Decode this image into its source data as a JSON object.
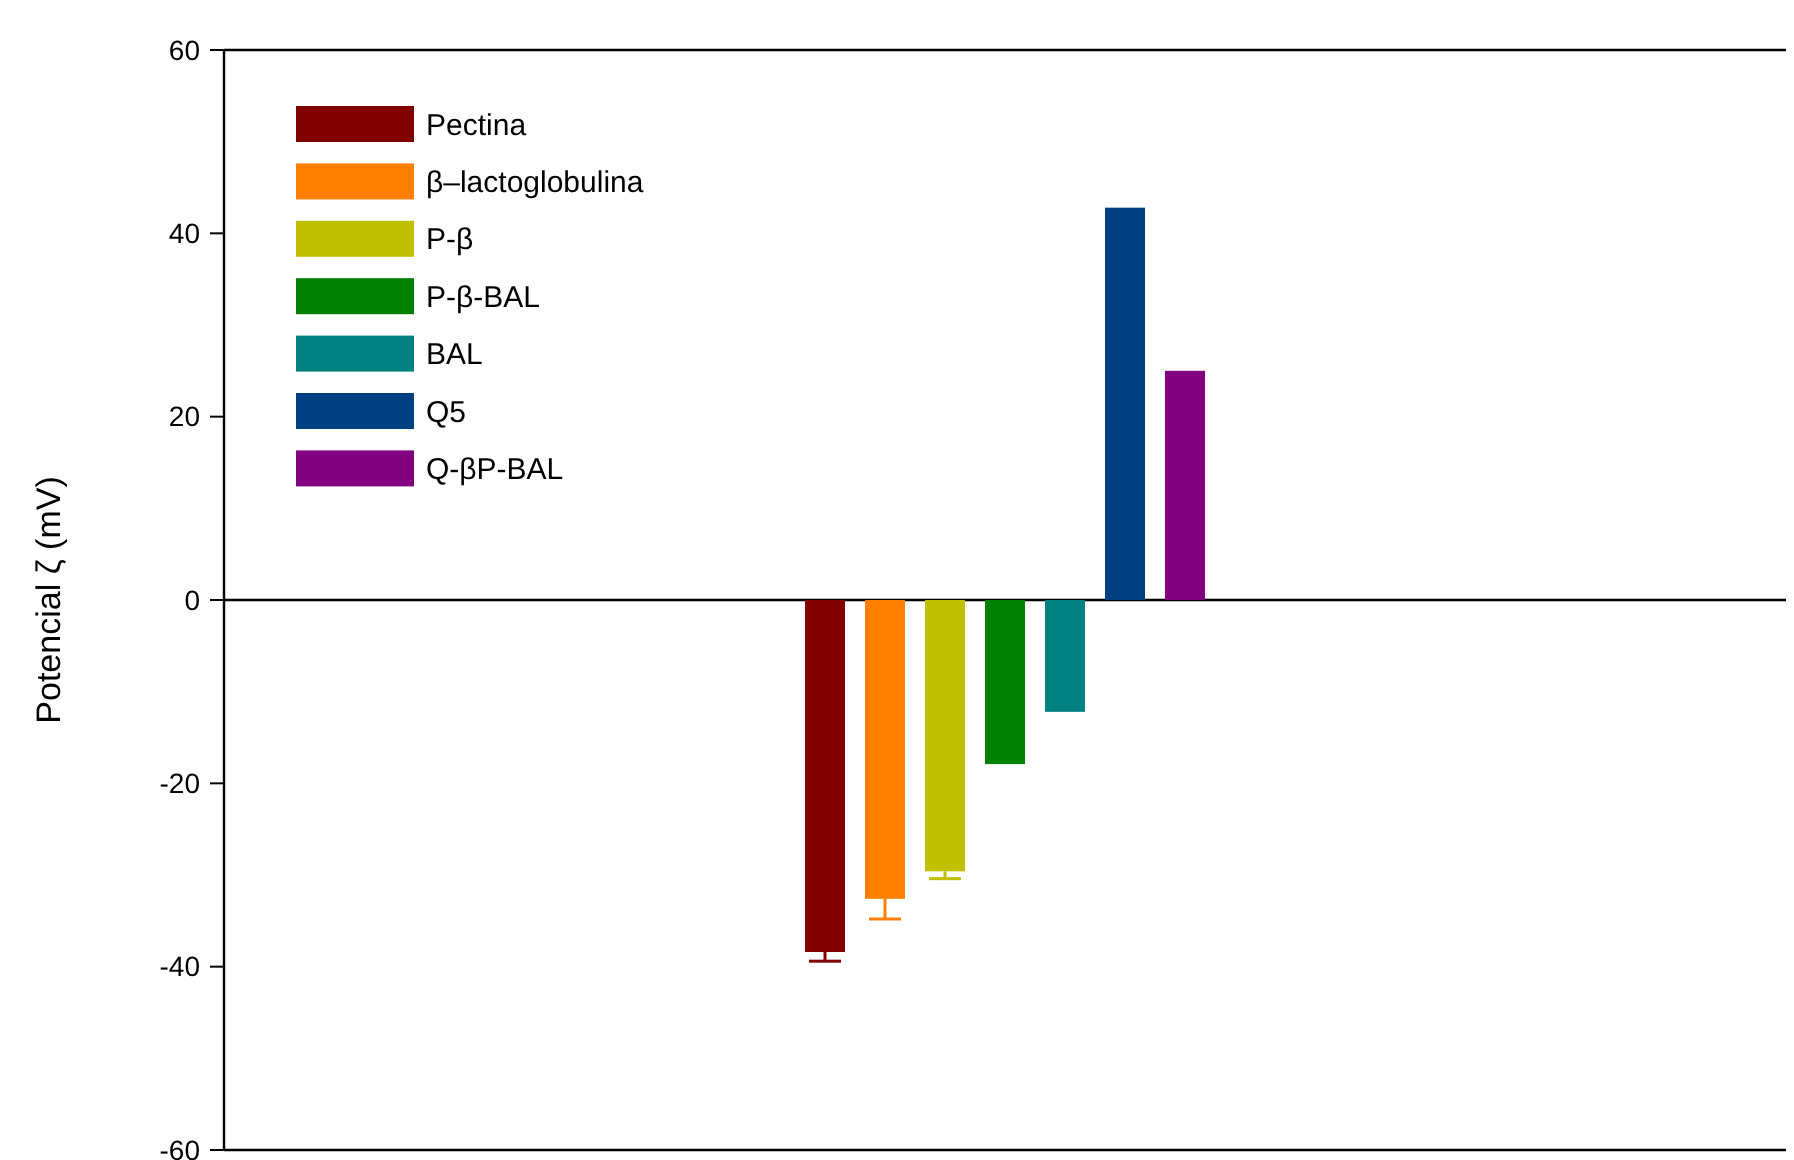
{
  "chart_data": {
    "type": "bar",
    "ylabel": "Potencial ζ (mV)",
    "categories": [
      null
    ],
    "series": [
      {
        "name": "Pectina",
        "color": "#800000",
        "values": [
          -38.4
        ],
        "errors": [
          1.0
        ]
      },
      {
        "name": "β–lactoglobulina",
        "color": "#ff8000",
        "values": [
          -32.6
        ],
        "errors": [
          2.2
        ]
      },
      {
        "name": "P-β",
        "color": "#c0c000",
        "values": [
          -29.6
        ],
        "errors": [
          0.8
        ]
      },
      {
        "name": "P-β-BAL",
        "color": "#008000",
        "values": [
          -17.9
        ],
        "errors": [
          null
        ]
      },
      {
        "name": "BAL",
        "color": "#008080",
        "values": [
          -12.2
        ],
        "errors": [
          null
        ]
      },
      {
        "name": "Q5",
        "color": "#004080",
        "values": [
          42.8
        ],
        "errors": [
          null
        ]
      },
      {
        "name": "Q-βP-BAL",
        "color": "#800080",
        "values": [
          25.0
        ],
        "errors": [
          null
        ]
      }
    ],
    "ylim": [
      -60,
      60
    ],
    "yticks": [
      -60,
      -40,
      -20,
      0,
      20,
      40,
      60
    ],
    "ref_lines": [
      {
        "axis": "y",
        "value": 0
      }
    ],
    "legend": "top left",
    "grid": false,
    "tick_labels": "y"
  }
}
